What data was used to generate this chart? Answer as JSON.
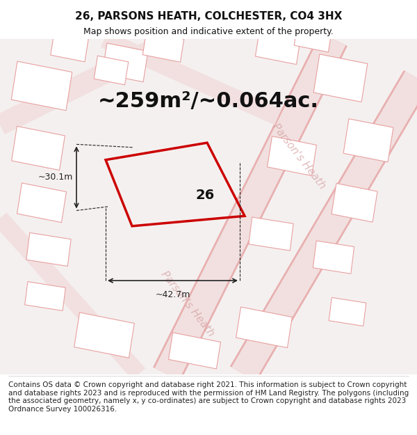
{
  "title_line1": "26, PARSONS HEATH, COLCHESTER, CO4 3HX",
  "title_line2": "Map shows position and indicative extent of the property.",
  "footer_text": "Contains OS data © Crown copyright and database right 2021. This information is subject to Crown copyright and database rights 2023 and is reproduced with the permission of HM Land Registry. The polygons (including the associated geometry, namely x, y co-ordinates) are subject to Crown copyright and database rights 2023 Ordnance Survey 100026316.",
  "area_label": "~259m²/~0.064ac.",
  "house_number": "26",
  "dim_width": "~42.7m",
  "dim_height": "~30.1m",
  "bg_color": "#f5f5f5",
  "map_bg": "#f8f8f8",
  "road_color": "#f0c0c0",
  "building_outline_color": "#e8a0a0",
  "plot_color": "#cc0000",
  "plot_fill": "none",
  "street_label1": "Parson's Heath",
  "street_label2": "Parson's Heath",
  "dim_color": "#222222",
  "title_fontsize": 11,
  "subtitle_fontsize": 9,
  "area_fontsize": 22,
  "footer_fontsize": 7.5
}
